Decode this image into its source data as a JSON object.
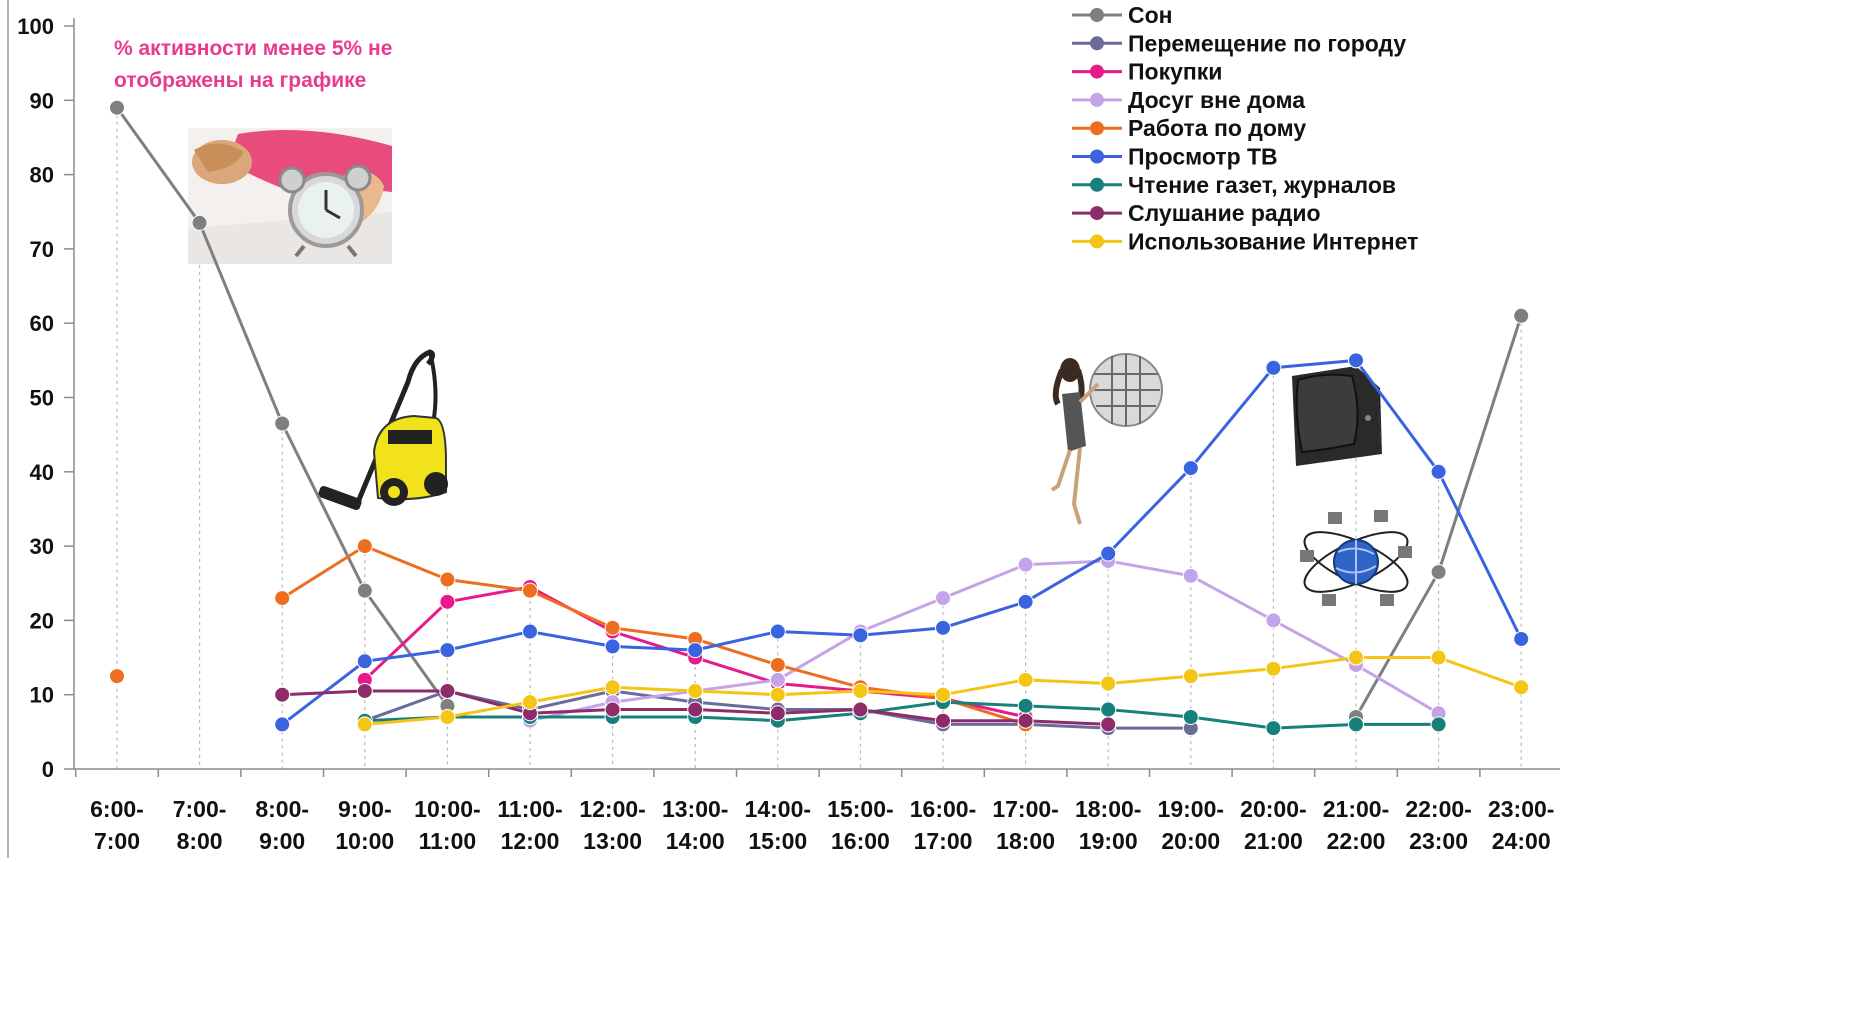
{
  "chart_data": {
    "type": "line",
    "note": "% активности менее 5% не отображены на графике",
    "ylim": [
      0,
      100
    ],
    "yticks": [
      0,
      10,
      20,
      30,
      40,
      50,
      60,
      70,
      80,
      90,
      100
    ],
    "categories": [
      [
        "6:00-",
        "7:00"
      ],
      [
        "7:00-",
        "8:00"
      ],
      [
        "8:00-",
        "9:00"
      ],
      [
        "9:00-",
        "10:00"
      ],
      [
        "10:00-",
        "11:00"
      ],
      [
        "11:00-",
        "12:00"
      ],
      [
        "12:00-",
        "13:00"
      ],
      [
        "13:00-",
        "14:00"
      ],
      [
        "14:00-",
        "15:00"
      ],
      [
        "15:00-",
        "16:00"
      ],
      [
        "16:00-",
        "17:00"
      ],
      [
        "17:00-",
        "18:00"
      ],
      [
        "18:00-",
        "19:00"
      ],
      [
        "19:00-",
        "20:00"
      ],
      [
        "20:00-",
        "21:00"
      ],
      [
        "21:00-",
        "22:00"
      ],
      [
        "22:00-",
        "23:00"
      ],
      [
        "23:00-",
        "24:00"
      ]
    ],
    "legend_position": "top-right",
    "series": [
      {
        "name": "Сон",
        "color": "#7f7f7f",
        "values": [
          89,
          73.5,
          46.5,
          24,
          8.5,
          null,
          null,
          null,
          null,
          null,
          null,
          null,
          null,
          null,
          null,
          7,
          26.5,
          61
        ]
      },
      {
        "name": "Перемещение по городу",
        "color": "#6b6b99",
        "values": [
          null,
          null,
          null,
          6.5,
          10.5,
          8,
          10.5,
          9,
          8,
          8,
          6,
          6,
          5.5,
          5.5,
          null,
          null,
          null,
          null
        ]
      },
      {
        "name": "Покупки",
        "color": "#e8198b",
        "values": [
          null,
          null,
          null,
          12,
          22.5,
          24.5,
          18.5,
          15,
          11.5,
          10.5,
          9.5,
          7,
          null,
          null,
          null,
          null,
          null,
          null
        ]
      },
      {
        "name": "Досуг вне дома",
        "color": "#c5a3e8",
        "values": [
          null,
          null,
          null,
          null,
          null,
          6.5,
          9,
          10.5,
          12,
          18.5,
          23,
          27.5,
          28,
          26,
          20,
          14,
          7.5,
          null
        ]
      },
      {
        "name": "Работа по дому",
        "color": "#ee6d1f",
        "values": [
          12.5,
          null,
          23,
          30,
          25.5,
          24,
          19,
          17.5,
          14,
          11,
          9.5,
          6,
          null,
          null,
          null,
          null,
          null,
          null
        ]
      },
      {
        "name": "Просмотр ТВ",
        "color": "#3a63e0",
        "values": [
          null,
          null,
          6,
          14.5,
          16,
          18.5,
          16.5,
          16,
          18.5,
          18,
          19,
          22.5,
          29,
          40.5,
          54,
          55,
          40,
          17.5
        ]
      },
      {
        "name": "Чтение газет, журналов",
        "color": "#17807a",
        "values": [
          null,
          null,
          null,
          6.5,
          7,
          7,
          7,
          7,
          6.5,
          7.5,
          9,
          8.5,
          8,
          7,
          5.5,
          6,
          6,
          null
        ]
      },
      {
        "name": "Слушание радио",
        "color": "#8e2b6a",
        "values": [
          null,
          null,
          10,
          10.5,
          10.5,
          7.5,
          8,
          8,
          7.5,
          8,
          6.5,
          6.5,
          6,
          null,
          null,
          null,
          null,
          null
        ]
      },
      {
        "name": "Использование Интернет",
        "color": "#f5c516",
        "values": [
          null,
          null,
          null,
          6,
          7,
          9,
          11,
          10.5,
          10,
          10.5,
          10,
          12,
          11.5,
          12.5,
          13.5,
          15,
          15,
          11
        ]
      }
    ]
  },
  "pictures": {
    "alarm": "alarm-clock-photo",
    "vacuum": "vacuum-cleaner-illustration",
    "dancer": "dancer-with-disco-ball-illustration",
    "tv": "tv-set-illustration",
    "network": "computer-network-globe-illustration"
  }
}
